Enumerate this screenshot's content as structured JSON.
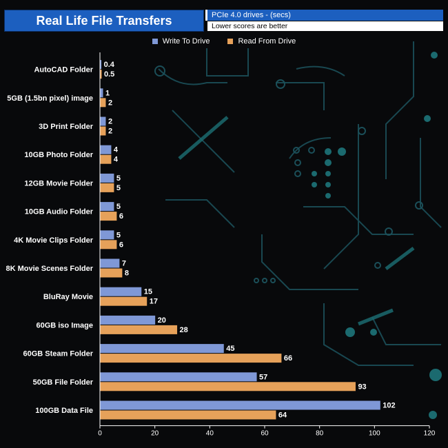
{
  "header": {
    "title": "Real Life File Transfers",
    "subtitle": "PCIe 4.0 drives - (secs)",
    "note": "Lower scores are better"
  },
  "colors": {
    "write": "#7f98d6",
    "read": "#e6a15a",
    "background": "#08090b",
    "circuit": "#1b4f59",
    "header_blue": "#1c5fbf"
  },
  "chart_data": {
    "type": "bar",
    "orientation": "horizontal",
    "categories": [
      "AutoCAD Folder",
      "5GB (1.5bn pixel) image",
      "3D Print Folder",
      "10GB Photo Folder",
      "12GB Movie Folder",
      "10GB Audio Folder",
      "4K Movie Clips Folder",
      "8K Movie Scenes Folder",
      "BluRay Movie",
      "60GB iso Image",
      "60GB Steam Folder",
      "50GB File Folder",
      "100GB Data File"
    ],
    "series": [
      {
        "name": "Write To  Drive",
        "values": [
          0.4,
          1,
          2,
          4,
          5,
          5,
          5,
          7,
          15,
          20,
          45,
          57,
          102
        ]
      },
      {
        "name": "Read From  Drive",
        "values": [
          0.5,
          2,
          2,
          4,
          5,
          6,
          6,
          8,
          17,
          28,
          66,
          93,
          64
        ]
      }
    ],
    "xlim": [
      0,
      120
    ],
    "xticks": [
      0,
      20,
      40,
      60,
      80,
      100,
      120
    ],
    "legend_position": "top",
    "grid": false
  }
}
